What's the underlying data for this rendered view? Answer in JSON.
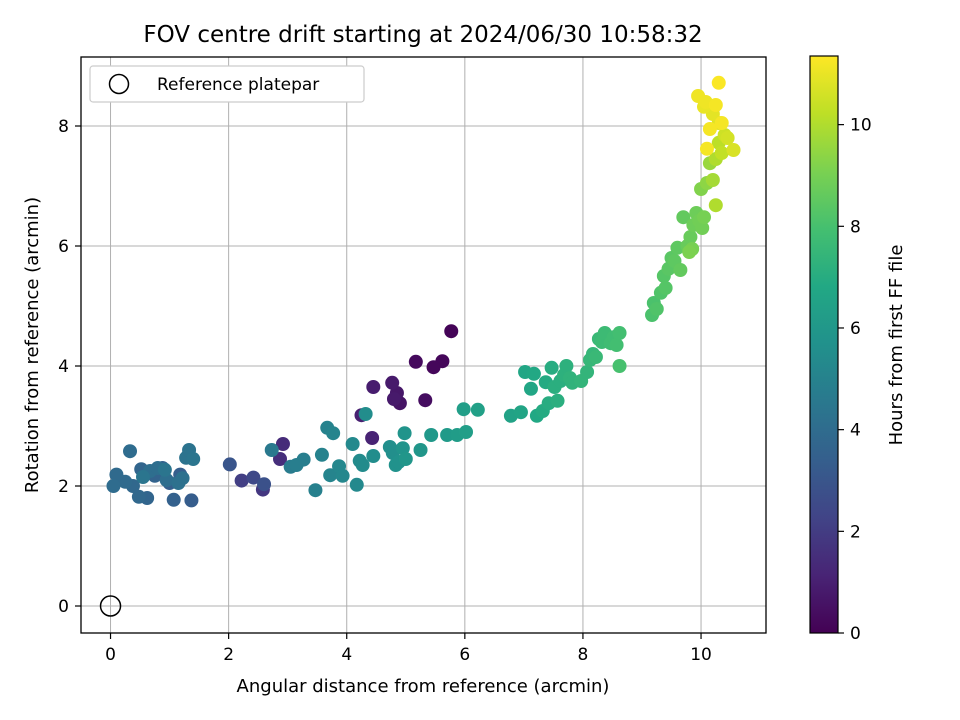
{
  "chart_data": {
    "type": "scatter",
    "title": "FOV centre drift starting at 2024/06/30 10:58:32",
    "xlabel": "Angular distance from reference (arcmin)",
    "ylabel": "Rotation from reference (arcmin)",
    "xlim": [
      -0.5,
      11.1
    ],
    "ylim": [
      -0.45,
      9.15
    ],
    "xticks": [
      0,
      2,
      4,
      6,
      8,
      10
    ],
    "yticks": [
      0,
      2,
      4,
      6,
      8
    ],
    "grid": true,
    "legend": {
      "position": "top-left",
      "entries": [
        "Reference platepar"
      ]
    },
    "reference_point": {
      "x": 0,
      "y": 0
    },
    "colorbar": {
      "label": "Hours from first FF file",
      "colormap": "viridis",
      "range": [
        0,
        11.35
      ],
      "ticks": [
        0,
        2,
        4,
        6,
        8,
        10
      ]
    },
    "points": [
      [
        5.77,
        4.58,
        0.1
      ],
      [
        5.62,
        4.08,
        0.2
      ],
      [
        5.47,
        3.98,
        0.2
      ],
      [
        5.17,
        4.07,
        0.3
      ],
      [
        5.33,
        3.43,
        0.4
      ],
      [
        4.9,
        3.38,
        0.6
      ],
      [
        4.85,
        3.55,
        0.7
      ],
      [
        4.77,
        3.72,
        0.8
      ],
      [
        4.8,
        3.45,
        0.8
      ],
      [
        4.45,
        3.65,
        0.9
      ],
      [
        4.25,
        3.18,
        1.0
      ],
      [
        4.43,
        2.8,
        1.1
      ],
      [
        2.92,
        2.7,
        1.4
      ],
      [
        2.87,
        2.45,
        1.5
      ],
      [
        2.58,
        1.94,
        1.8
      ],
      [
        2.22,
        2.09,
        2.1
      ],
      [
        2.42,
        2.14,
        2.5
      ],
      [
        2.6,
        2.03,
        2.8
      ],
      [
        2.02,
        2.36,
        3.0
      ],
      [
        1.37,
        1.76,
        3.3
      ],
      [
        1.18,
        2.19,
        3.4
      ],
      [
        1.0,
        2.05,
        3.4
      ],
      [
        1.07,
        1.77,
        3.5
      ],
      [
        0.88,
        2.3,
        3.5
      ],
      [
        0.75,
        2.17,
        3.6
      ],
      [
        0.62,
        1.8,
        3.7
      ],
      [
        0.52,
        2.28,
        3.7
      ],
      [
        0.48,
        1.82,
        3.8
      ],
      [
        0.38,
        2.0,
        3.8
      ],
      [
        0.25,
        2.07,
        3.9
      ],
      [
        0.1,
        2.19,
        3.9
      ],
      [
        0.05,
        2.0,
        4.0
      ],
      [
        0.33,
        2.58,
        4.0
      ],
      [
        0.67,
        2.25,
        4.1
      ],
      [
        0.8,
        2.3,
        4.1
      ],
      [
        0.95,
        2.1,
        4.1
      ],
      [
        1.15,
        2.05,
        4.2
      ],
      [
        1.22,
        2.13,
        4.2
      ],
      [
        1.28,
        2.47,
        4.3
      ],
      [
        1.33,
        2.6,
        4.3
      ],
      [
        1.4,
        2.45,
        4.4
      ],
      [
        0.92,
        2.27,
        4.4
      ],
      [
        0.55,
        2.15,
        4.4
      ],
      [
        2.73,
        2.6,
        4.6
      ],
      [
        3.05,
        2.32,
        4.7
      ],
      [
        3.15,
        2.35,
        4.8
      ],
      [
        3.27,
        2.44,
        4.8
      ],
      [
        3.47,
        1.93,
        4.9
      ],
      [
        3.58,
        2.52,
        5.0
      ],
      [
        3.67,
        2.97,
        5.0
      ],
      [
        3.72,
        2.18,
        5.1
      ],
      [
        3.77,
        2.88,
        5.1
      ],
      [
        3.87,
        2.33,
        5.2
      ],
      [
        3.93,
        2.17,
        5.2
      ],
      [
        4.1,
        2.7,
        5.3
      ],
      [
        4.17,
        2.02,
        5.3
      ],
      [
        4.22,
        2.42,
        5.4
      ],
      [
        4.27,
        2.35,
        5.4
      ],
      [
        4.32,
        3.2,
        5.5
      ],
      [
        4.45,
        2.5,
        5.5
      ],
      [
        4.73,
        2.65,
        5.6
      ],
      [
        4.78,
        2.55,
        5.6
      ],
      [
        4.83,
        2.35,
        5.7
      ],
      [
        4.88,
        2.4,
        5.7
      ],
      [
        4.95,
        2.63,
        5.8
      ],
      [
        4.98,
        2.88,
        5.8
      ],
      [
        5.0,
        2.45,
        5.9
      ],
      [
        5.25,
        2.6,
        5.9
      ],
      [
        5.43,
        2.85,
        6.0
      ],
      [
        5.7,
        2.85,
        6.1
      ],
      [
        5.87,
        2.85,
        6.2
      ],
      [
        6.02,
        2.9,
        6.3
      ],
      [
        5.98,
        3.28,
        6.3
      ],
      [
        6.22,
        3.27,
        6.4
      ],
      [
        6.78,
        3.17,
        6.5
      ],
      [
        6.95,
        3.23,
        6.6
      ],
      [
        7.02,
        3.9,
        6.7
      ],
      [
        7.12,
        3.62,
        6.7
      ],
      [
        7.17,
        3.87,
        6.8
      ],
      [
        7.22,
        3.17,
        6.8
      ],
      [
        7.32,
        3.25,
        6.9
      ],
      [
        7.37,
        3.73,
        6.9
      ],
      [
        7.42,
        3.38,
        7.0
      ],
      [
        7.47,
        3.97,
        7.0
      ],
      [
        7.52,
        3.65,
        7.1
      ],
      [
        7.57,
        3.42,
        7.1
      ],
      [
        7.62,
        3.75,
        7.1
      ],
      [
        7.68,
        3.85,
        7.2
      ],
      [
        7.72,
        4.0,
        7.2
      ],
      [
        7.78,
        3.8,
        7.3
      ],
      [
        7.82,
        3.72,
        7.3
      ],
      [
        7.97,
        3.75,
        7.4
      ],
      [
        8.07,
        3.9,
        7.4
      ],
      [
        8.12,
        4.1,
        7.5
      ],
      [
        8.17,
        4.2,
        7.5
      ],
      [
        8.22,
        4.15,
        7.6
      ],
      [
        8.27,
        4.45,
        7.6
      ],
      [
        8.32,
        4.4,
        7.7
      ],
      [
        8.37,
        4.55,
        7.7
      ],
      [
        8.47,
        4.38,
        7.8
      ],
      [
        8.52,
        4.48,
        7.8
      ],
      [
        8.57,
        4.35,
        7.9
      ],
      [
        8.62,
        4.55,
        7.9
      ],
      [
        8.62,
        4.0,
        8.0
      ],
      [
        9.17,
        4.85,
        8.1
      ],
      [
        9.2,
        5.05,
        8.1
      ],
      [
        9.25,
        4.95,
        8.2
      ],
      [
        9.32,
        5.22,
        8.2
      ],
      [
        9.37,
        5.5,
        8.3
      ],
      [
        9.4,
        5.3,
        8.3
      ],
      [
        9.45,
        5.62,
        8.4
      ],
      [
        9.5,
        5.8,
        8.4
      ],
      [
        9.55,
        5.75,
        8.5
      ],
      [
        9.6,
        5.97,
        8.5
      ],
      [
        9.65,
        5.6,
        8.6
      ],
      [
        9.7,
        6.48,
        8.6
      ],
      [
        9.77,
        6.0,
        8.7
      ],
      [
        9.82,
        6.15,
        8.7
      ],
      [
        9.87,
        6.35,
        8.8
      ],
      [
        9.92,
        6.55,
        8.8
      ],
      [
        9.97,
        6.42,
        8.9
      ],
      [
        10.02,
        6.3,
        8.9
      ],
      [
        10.05,
        6.48,
        9.0
      ],
      [
        9.85,
        5.95,
        9.0
      ],
      [
        9.8,
        5.9,
        9.1
      ],
      [
        10.0,
        6.95,
        9.2
      ],
      [
        10.1,
        7.05,
        9.4
      ],
      [
        10.15,
        7.38,
        9.6
      ],
      [
        10.2,
        7.1,
        9.8
      ],
      [
        10.25,
        7.45,
        10.0
      ],
      [
        10.3,
        7.72,
        10.2
      ],
      [
        10.25,
        6.68,
        10.0
      ],
      [
        10.35,
        7.55,
        10.3
      ],
      [
        10.4,
        7.85,
        10.5
      ],
      [
        10.45,
        7.8,
        10.6
      ],
      [
        10.55,
        7.6,
        10.7
      ],
      [
        10.3,
        8.05,
        10.8
      ],
      [
        10.2,
        8.2,
        10.9
      ],
      [
        10.05,
        8.32,
        11.0
      ],
      [
        9.95,
        8.5,
        11.1
      ],
      [
        10.08,
        8.4,
        11.1
      ],
      [
        10.25,
        8.35,
        11.2
      ],
      [
        10.15,
        7.95,
        11.2
      ],
      [
        10.1,
        7.62,
        11.2
      ],
      [
        10.35,
        8.05,
        11.2
      ],
      [
        10.3,
        8.72,
        11.3
      ]
    ]
  }
}
